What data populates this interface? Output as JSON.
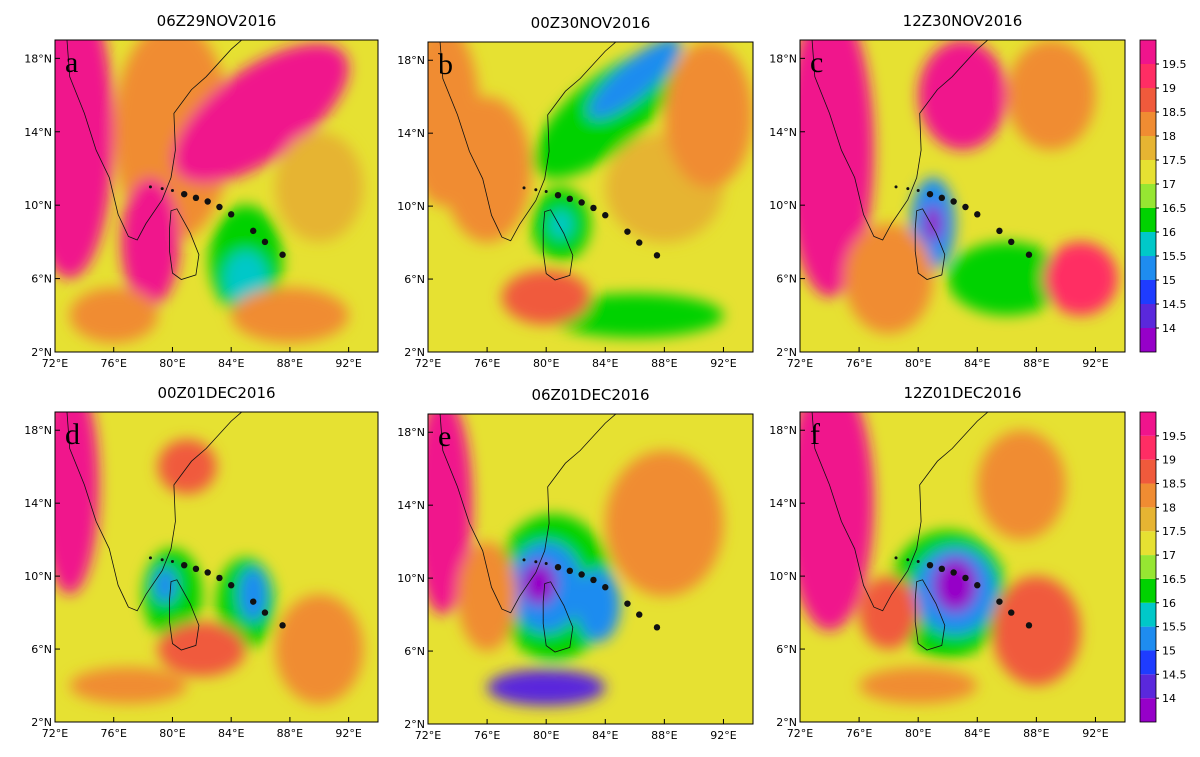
{
  "panels": [
    {
      "title": "06Z29NOV2016",
      "letter": "a"
    },
    {
      "title": "00Z30NOV2016",
      "letter": "b"
    },
    {
      "title": "12Z30NOV2016",
      "letter": "c"
    },
    {
      "title": "00Z01DEC2016",
      "letter": "d"
    },
    {
      "title": "06Z01DEC2016",
      "letter": "e"
    },
    {
      "title": "12Z01DEC2016",
      "letter": "f"
    }
  ],
  "lat_labels": [
    "18°N",
    "14°N",
    "10°N",
    "6°N",
    "2°N"
  ],
  "lon_labels": [
    "72°E",
    "76°E",
    "80°E",
    "84°E",
    "88°E",
    "92°E"
  ],
  "colorbar": {
    "levels": [
      14,
      14.5,
      15,
      15.5,
      16,
      16.5,
      17,
      17.5,
      18,
      18.5,
      19,
      19.5
    ],
    "colors": [
      "#9600c8",
      "#5a28dc",
      "#1e3cff",
      "#1e8cf0",
      "#00c8c8",
      "#00d200",
      "#96e632",
      "#e6e132",
      "#e6b432",
      "#f08c32",
      "#f05a3c",
      "#ff2d64",
      "#f0148c"
    ]
  }
}
